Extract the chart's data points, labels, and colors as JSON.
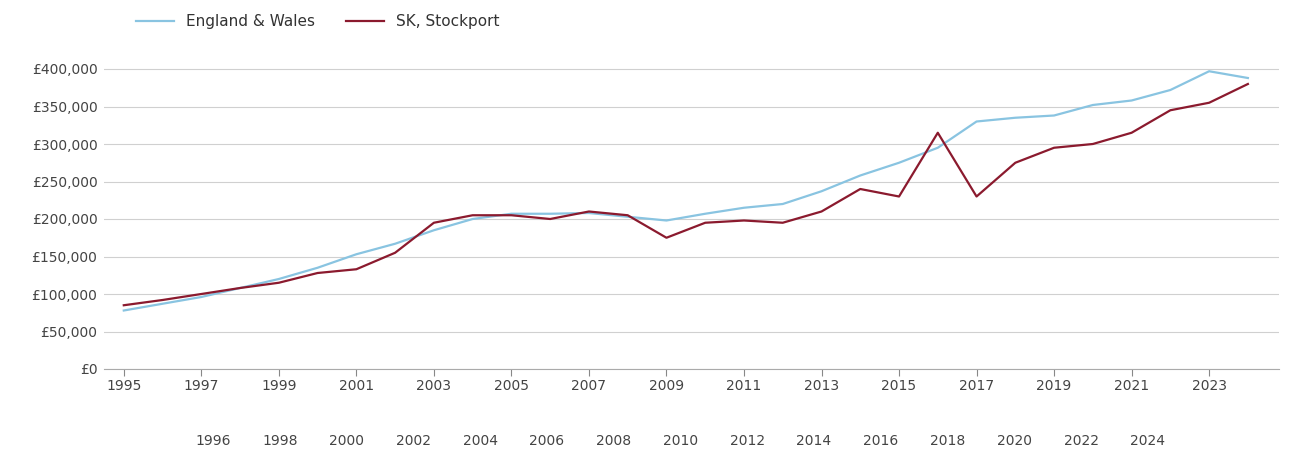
{
  "sk_years": [
    1995,
    1996,
    1997,
    1998,
    1999,
    2000,
    2001,
    2002,
    2003,
    2004,
    2005,
    2006,
    2007,
    2008,
    2009,
    2010,
    2011,
    2012,
    2013,
    2014,
    2015,
    2016,
    2017,
    2018,
    2019,
    2020,
    2021,
    2022,
    2023,
    2024
  ],
  "sk_values": [
    85000,
    92000,
    100000,
    108000,
    115000,
    128000,
    133000,
    155000,
    195000,
    205000,
    205000,
    200000,
    210000,
    205000,
    175000,
    195000,
    198000,
    195000,
    210000,
    240000,
    230000,
    315000,
    230000,
    275000,
    295000,
    300000,
    315000,
    345000,
    355000,
    380000
  ],
  "ew_years": [
    1995,
    1996,
    1997,
    1998,
    1999,
    2000,
    2001,
    2002,
    2003,
    2004,
    2005,
    2006,
    2007,
    2008,
    2009,
    2010,
    2011,
    2012,
    2013,
    2014,
    2015,
    2016,
    2017,
    2018,
    2019,
    2020,
    2021,
    2022,
    2023,
    2024
  ],
  "ew_values": [
    78000,
    87000,
    96000,
    108000,
    120000,
    135000,
    153000,
    167000,
    185000,
    200000,
    207000,
    207000,
    208000,
    203000,
    198000,
    207000,
    215000,
    220000,
    237000,
    258000,
    275000,
    295000,
    330000,
    335000,
    338000,
    352000,
    358000,
    372000,
    397000,
    388000
  ],
  "sk_color": "#8b1a2e",
  "ew_color": "#89c4e1",
  "sk_label": "SK, Stockport",
  "ew_label": "England & Wales",
  "ylim": [
    0,
    420000
  ],
  "yticks": [
    0,
    50000,
    100000,
    150000,
    200000,
    250000,
    300000,
    350000,
    400000
  ],
  "ytick_labels": [
    "£0",
    "£50,000",
    "£100,000",
    "£150,000",
    "£200,000",
    "£250,000",
    "£300,000",
    "£350,000",
    "£400,000"
  ],
  "xticks_odd": [
    1995,
    1997,
    1999,
    2001,
    2003,
    2005,
    2007,
    2009,
    2011,
    2013,
    2015,
    2017,
    2019,
    2021,
    2023
  ],
  "xticks_even": [
    1996,
    1998,
    2000,
    2002,
    2004,
    2006,
    2008,
    2010,
    2012,
    2014,
    2016,
    2018,
    2020,
    2022,
    2024
  ],
  "xlim": [
    1994.5,
    2024.8
  ],
  "background_color": "#ffffff",
  "grid_color": "#d0d0d0",
  "line_width": 1.6
}
